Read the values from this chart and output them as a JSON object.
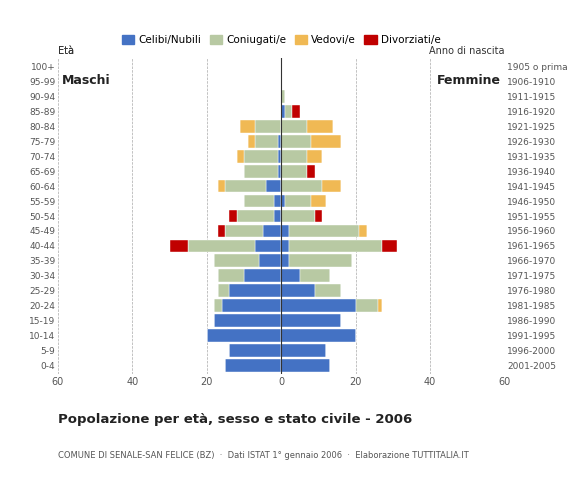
{
  "age_groups": [
    "0-4",
    "5-9",
    "10-14",
    "15-19",
    "20-24",
    "25-29",
    "30-34",
    "35-39",
    "40-44",
    "45-49",
    "50-54",
    "55-59",
    "60-64",
    "65-69",
    "70-74",
    "75-79",
    "80-84",
    "85-89",
    "90-94",
    "95-99",
    "100+"
  ],
  "birth_years": [
    "2001-2005",
    "1996-2000",
    "1991-1995",
    "1986-1990",
    "1981-1985",
    "1976-1980",
    "1971-1975",
    "1966-1970",
    "1961-1965",
    "1956-1960",
    "1951-1955",
    "1946-1950",
    "1941-1945",
    "1936-1940",
    "1931-1935",
    "1926-1930",
    "1921-1925",
    "1916-1920",
    "1911-1915",
    "1906-1910",
    "1905 o prima"
  ],
  "colors": {
    "celibe": "#4472c4",
    "coniugato": "#b8c9a3",
    "vedovo": "#f0b954",
    "divorziato": "#c00000"
  },
  "males": {
    "celibe": [
      15,
      14,
      20,
      18,
      16,
      14,
      10,
      6,
      7,
      5,
      2,
      2,
      4,
      1,
      1,
      1,
      0,
      0,
      0,
      0,
      0
    ],
    "coniugato": [
      0,
      0,
      0,
      0,
      2,
      3,
      7,
      12,
      18,
      10,
      10,
      8,
      11,
      9,
      9,
      6,
      7,
      0,
      0,
      0,
      0
    ],
    "vedovo": [
      0,
      0,
      0,
      0,
      0,
      0,
      0,
      0,
      0,
      0,
      0,
      0,
      2,
      0,
      2,
      2,
      4,
      0,
      0,
      0,
      0
    ],
    "divorziato": [
      0,
      0,
      0,
      0,
      0,
      0,
      0,
      0,
      5,
      2,
      2,
      0,
      0,
      0,
      0,
      0,
      0,
      0,
      0,
      0,
      0
    ]
  },
  "females": {
    "celibe": [
      13,
      12,
      20,
      16,
      20,
      9,
      5,
      2,
      2,
      2,
      0,
      1,
      0,
      0,
      0,
      0,
      0,
      1,
      0,
      0,
      0
    ],
    "coniugato": [
      0,
      0,
      0,
      0,
      6,
      7,
      8,
      17,
      25,
      19,
      9,
      7,
      11,
      7,
      7,
      8,
      7,
      2,
      1,
      0,
      0
    ],
    "vedovo": [
      0,
      0,
      0,
      0,
      1,
      0,
      0,
      0,
      0,
      2,
      0,
      4,
      5,
      0,
      4,
      8,
      7,
      0,
      0,
      0,
      0
    ],
    "divorziato": [
      0,
      0,
      0,
      0,
      0,
      0,
      0,
      0,
      4,
      0,
      2,
      0,
      0,
      2,
      0,
      0,
      0,
      2,
      0,
      0,
      0
    ]
  },
  "title": "Popolazione per età, sesso e stato civile - 2006",
  "subtitle": "COMUNE DI SENALE-SAN FELICE (BZ)  ·  Dati ISTAT 1° gennaio 2006  ·  Elaborazione TUTTITALIA.IT",
  "xlim": 60,
  "xlabel_left": "Maschi",
  "xlabel_right": "Femmine",
  "ylabel_left": "Età",
  "ylabel_right": "Anno di nascita",
  "background_color": "#ffffff",
  "grid_color": "#aaaaaa"
}
